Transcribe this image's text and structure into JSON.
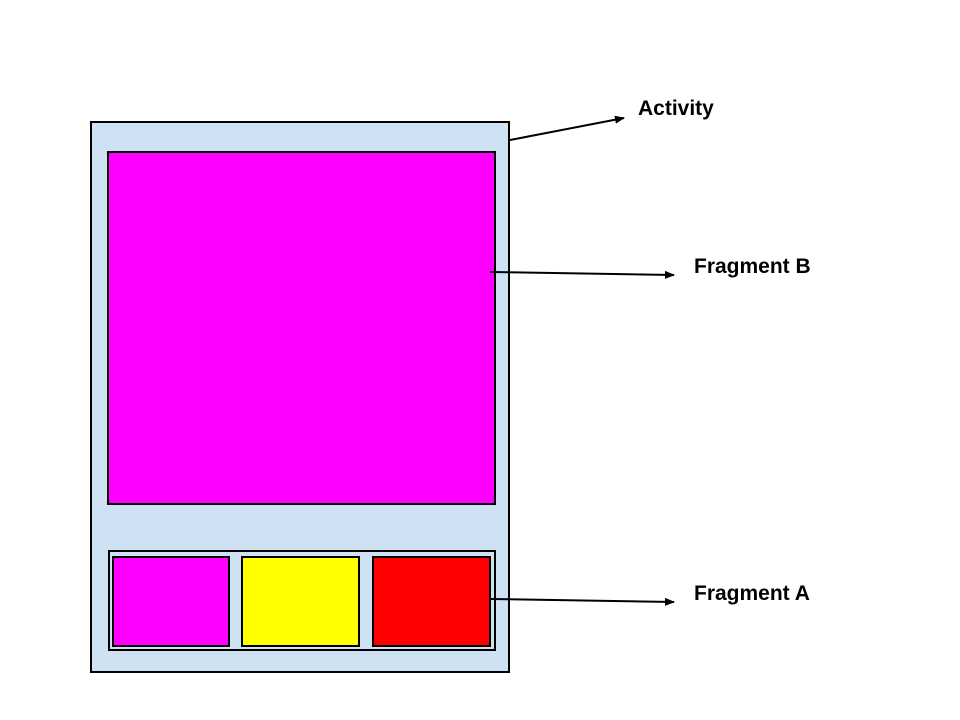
{
  "colors": {
    "activity_fill": "#cfe2f3",
    "fragment_b_fill": "#ff00ff",
    "fragment_a_fill": "#cfe2f3",
    "tiles": [
      "#ff00ff",
      "#ffff00",
      "#ff0000"
    ],
    "stroke": "#000000"
  },
  "labels": {
    "activity": "Activity",
    "fragment_b": "Fragment B",
    "fragment_a": "Fragment A"
  }
}
